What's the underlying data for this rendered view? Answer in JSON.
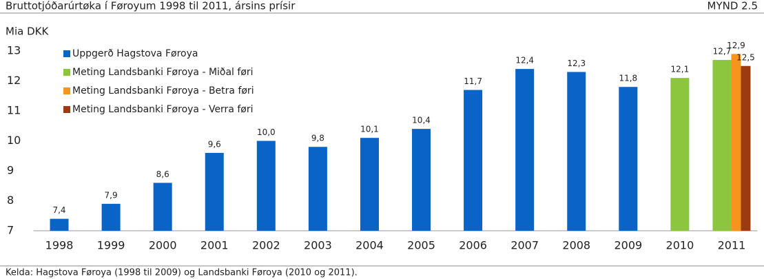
{
  "chart_data": {
    "type": "bar",
    "title": "Bruttotjóðarúrtøka í Føroyum 1998 til 2011, ársins prísir",
    "figure_label": "MYND 2.5",
    "y_label": "Mia DKK",
    "source": "Kelda: Hagstova Føroya (1998 til 2009) og Landsbanki Føroya (2010 og 2011).",
    "categories": [
      "1998",
      "1999",
      "2000",
      "2001",
      "2002",
      "2003",
      "2004",
      "2005",
      "2006",
      "2007",
      "2008",
      "2009",
      "2010",
      "2011"
    ],
    "series": [
      {
        "name": "Uppgerð Hagstova Føroya",
        "color": "#0a64c8",
        "values": [
          7.4,
          7.9,
          8.6,
          9.6,
          10.0,
          9.8,
          10.1,
          10.4,
          11.7,
          12.4,
          12.3,
          11.8,
          null,
          null
        ],
        "value_labels": [
          "7,4",
          "7,9",
          "8,6",
          "9,6",
          "10,0",
          "9,8",
          "10,1",
          "10,4",
          "11,7",
          "12,4",
          "12,3",
          "11,8",
          null,
          null
        ]
      },
      {
        "name": "Meting Landsbanki Føroya - Miðal føri",
        "color": "#8cc63f",
        "values": [
          null,
          null,
          null,
          null,
          null,
          null,
          null,
          null,
          null,
          null,
          null,
          null,
          12.1,
          12.7
        ],
        "value_labels": [
          null,
          null,
          null,
          null,
          null,
          null,
          null,
          null,
          null,
          null,
          null,
          null,
          "12,1",
          "12,7"
        ]
      },
      {
        "name": "Meting Landsbanki Føroya - Betra føri",
        "color": "#f7941d",
        "values": [
          null,
          null,
          null,
          null,
          null,
          null,
          null,
          null,
          null,
          null,
          null,
          null,
          null,
          12.9
        ],
        "value_labels": [
          null,
          null,
          null,
          null,
          null,
          null,
          null,
          null,
          null,
          null,
          null,
          null,
          null,
          "12,9"
        ]
      },
      {
        "name": "Meting Landsbanki Føroya - Verra føri",
        "color": "#9e3a0f",
        "values": [
          null,
          null,
          null,
          null,
          null,
          null,
          null,
          null,
          null,
          null,
          null,
          null,
          null,
          12.5
        ],
        "value_labels": [
          null,
          null,
          null,
          null,
          null,
          null,
          null,
          null,
          null,
          null,
          null,
          null,
          null,
          "12,5"
        ]
      }
    ],
    "ylim": [
      7,
      13
    ],
    "yticks": [
      7,
      8,
      9,
      10,
      11,
      12,
      13
    ],
    "grid": false,
    "legend": "top-left"
  }
}
